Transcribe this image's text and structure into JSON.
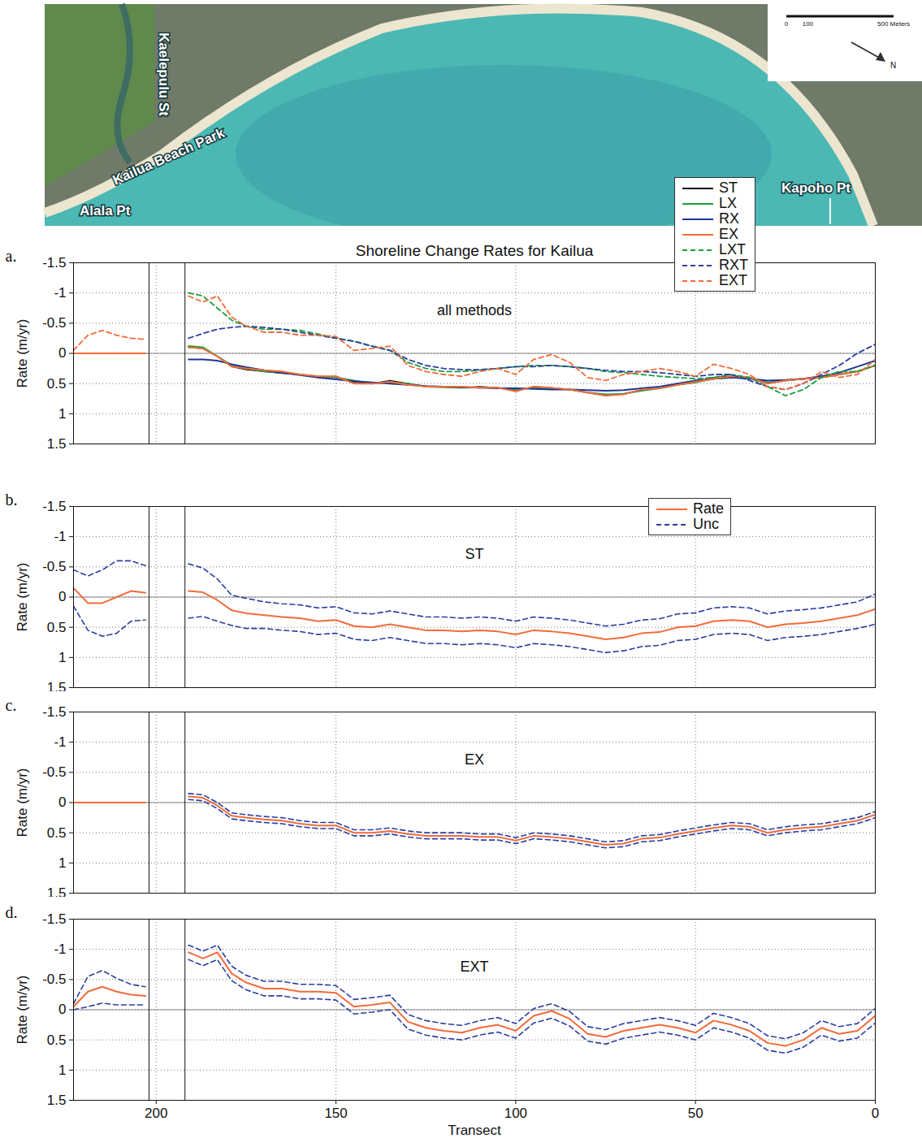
{
  "map": {
    "labels": {
      "street": "Kaelepulu St",
      "park": "Kailua Beach Park",
      "west_point": "Alala Pt",
      "east_point": "Kapoho Pt"
    },
    "scale_bar": {
      "ticks": [
        0,
        100,
        {
          "value": 500,
          "label": "500 Meters"
        }
      ]
    },
    "north": "N"
  },
  "chart_data": [
    {
      "type": "line",
      "panel_label": "a.",
      "title": "Shoreline Change Rates for Kailua",
      "annotation": "all methods",
      "x_label": null,
      "y_label": "Rate (m/yr)",
      "xlim": [
        223,
        0
      ],
      "xticks": [
        200,
        150,
        100,
        50,
        0
      ],
      "ylim": [
        1.5,
        -1.5
      ],
      "yticks": [
        -1.5,
        -1,
        -0.5,
        0,
        0.5,
        1,
        1.5
      ],
      "grid": true,
      "legend": "top-right",
      "tick_labels": "y",
      "gap_lines": [
        202,
        192
      ],
      "x": [
        223,
        219,
        215,
        211,
        207,
        203,
        197,
        191,
        187,
        183,
        179,
        175,
        170,
        165,
        160,
        155,
        150,
        145,
        140,
        135,
        130,
        125,
        120,
        115,
        110,
        105,
        100,
        95,
        90,
        85,
        80,
        75,
        70,
        65,
        60,
        55,
        50,
        45,
        40,
        35,
        30,
        25,
        20,
        15,
        10,
        5,
        0
      ],
      "series": [
        {
          "name": "ST",
          "color": "#111111",
          "line_style": "solid",
          "values": [
            null,
            null,
            null,
            null,
            null,
            null,
            null,
            -0.1,
            -0.08,
            0.05,
            0.22,
            0.27,
            0.3,
            0.33,
            0.35,
            0.4,
            0.38,
            0.48,
            0.5,
            0.45,
            0.5,
            0.55,
            0.55,
            0.57,
            0.55,
            0.57,
            0.62,
            0.55,
            0.57,
            0.6,
            0.65,
            0.7,
            0.67,
            0.6,
            0.58,
            0.5,
            0.48,
            0.4,
            0.38,
            0.4,
            0.5,
            0.45,
            0.43,
            0.4,
            0.35,
            0.3,
            0.2
          ]
        },
        {
          "name": "LX",
          "color": "#1a9e3c",
          "line_style": "solid",
          "values": [
            null,
            null,
            null,
            null,
            null,
            null,
            null,
            -0.12,
            -0.1,
            0.05,
            0.2,
            0.25,
            0.3,
            0.32,
            0.35,
            0.38,
            0.4,
            0.45,
            0.5,
            0.48,
            0.5,
            0.55,
            0.56,
            0.57,
            0.56,
            0.57,
            0.6,
            0.57,
            0.58,
            0.6,
            0.65,
            0.68,
            0.67,
            0.62,
            0.58,
            0.52,
            0.48,
            0.42,
            0.4,
            0.4,
            0.48,
            0.45,
            0.42,
            0.4,
            0.35,
            0.3,
            0.2
          ]
        },
        {
          "name": "RX",
          "color": "#1f3596",
          "line_style": "solid",
          "values": [
            null,
            null,
            null,
            null,
            null,
            null,
            null,
            0.1,
            0.1,
            0.12,
            0.18,
            0.23,
            0.28,
            0.32,
            0.36,
            0.4,
            0.43,
            0.46,
            0.48,
            0.5,
            0.52,
            0.54,
            0.55,
            0.56,
            0.57,
            0.58,
            0.58,
            0.59,
            0.6,
            0.6,
            0.61,
            0.62,
            0.61,
            0.58,
            0.55,
            0.5,
            0.45,
            0.42,
            0.4,
            0.42,
            0.45,
            0.44,
            0.42,
            0.38,
            0.32,
            0.22,
            0.12
          ]
        },
        {
          "name": "EX",
          "color": "#f26b3a",
          "line_style": "solid",
          "values": [
            0,
            0,
            0,
            0,
            0,
            0,
            null,
            -0.1,
            -0.08,
            0.05,
            0.22,
            0.25,
            0.28,
            0.3,
            0.35,
            0.38,
            0.38,
            0.5,
            0.5,
            0.47,
            0.52,
            0.55,
            0.55,
            0.55,
            0.57,
            0.57,
            0.63,
            0.55,
            0.57,
            0.6,
            0.65,
            0.7,
            0.68,
            0.6,
            0.58,
            0.52,
            0.47,
            0.42,
            0.38,
            0.4,
            0.5,
            0.45,
            0.42,
            0.4,
            0.35,
            0.3,
            0.2
          ]
        },
        {
          "name": "LXT",
          "color": "#1a9e3c",
          "line_style": "dashed",
          "values": [
            null,
            null,
            null,
            null,
            null,
            null,
            null,
            -1,
            -0.95,
            -0.75,
            -0.55,
            -0.45,
            -0.4,
            -0.4,
            -0.38,
            -0.32,
            -0.25,
            -0.2,
            -0.12,
            -0.05,
            0.15,
            0.25,
            0.3,
            0.3,
            0.28,
            0.25,
            0.22,
            0.2,
            0.2,
            0.22,
            0.25,
            0.3,
            0.32,
            0.35,
            0.38,
            0.4,
            0.42,
            0.4,
            0.35,
            0.4,
            0.55,
            0.7,
            0.6,
            0.4,
            0.3,
            0.3,
            0.2
          ]
        },
        {
          "name": "RXT",
          "color": "#2b3ea0",
          "line_style": "dashed",
          "values": [
            null,
            null,
            null,
            null,
            null,
            null,
            null,
            -0.25,
            -0.33,
            -0.4,
            -0.43,
            -0.45,
            -0.43,
            -0.4,
            -0.35,
            -0.3,
            -0.25,
            -0.2,
            -0.12,
            -0.05,
            0.1,
            0.2,
            0.25,
            0.27,
            0.27,
            0.25,
            0.22,
            0.22,
            0.2,
            0.22,
            0.25,
            0.28,
            0.3,
            0.3,
            0.32,
            0.35,
            0.38,
            0.35,
            0.35,
            0.45,
            0.55,
            0.6,
            0.5,
            0.35,
            0.2,
            0,
            -0.15
          ]
        },
        {
          "name": "EXT",
          "color": "#f26b3a",
          "line_style": "dashed",
          "values": [
            -0.05,
            -0.3,
            -0.38,
            -0.3,
            -0.25,
            -0.23,
            null,
            -0.95,
            -0.85,
            -0.95,
            -0.6,
            -0.45,
            -0.35,
            -0.35,
            -0.3,
            -0.3,
            -0.28,
            -0.05,
            -0.08,
            -0.12,
            0.2,
            0.3,
            0.35,
            0.38,
            0.3,
            0.25,
            0.35,
            0.1,
            0.02,
            0.15,
            0.4,
            0.45,
            0.35,
            0.3,
            0.25,
            0.3,
            0.38,
            0.18,
            0.25,
            0.35,
            0.55,
            0.6,
            0.5,
            0.3,
            0.4,
            0.35,
            0.1
          ]
        }
      ]
    },
    {
      "type": "line",
      "panel_label": "b.",
      "annotation": "ST",
      "x_label": null,
      "y_label": "Rate (m/yr)",
      "xlim": [
        223,
        0
      ],
      "xticks": [
        200,
        150,
        100,
        50,
        0
      ],
      "ylim": [
        1.5,
        -1.5
      ],
      "yticks": [
        -1.5,
        -1,
        -0.5,
        0,
        0.5,
        1,
        1.5
      ],
      "grid": true,
      "legend": "top-right",
      "tick_labels": "y",
      "gap_lines": [
        202,
        192
      ],
      "x": [
        223,
        219,
        215,
        211,
        207,
        203,
        197,
        191,
        187,
        183,
        179,
        175,
        170,
        165,
        160,
        155,
        150,
        145,
        140,
        135,
        130,
        125,
        120,
        115,
        110,
        105,
        100,
        95,
        90,
        85,
        80,
        75,
        70,
        65,
        60,
        55,
        50,
        45,
        40,
        35,
        30,
        25,
        20,
        15,
        10,
        5,
        0
      ],
      "series": [
        {
          "name": "Rate",
          "color": "#f26b3a",
          "line_style": "solid",
          "values": [
            -0.15,
            0.1,
            0.1,
            0,
            -0.1,
            -0.07,
            null,
            -0.1,
            -0.08,
            0.05,
            0.22,
            0.27,
            0.3,
            0.33,
            0.35,
            0.4,
            0.38,
            0.48,
            0.5,
            0.45,
            0.5,
            0.55,
            0.55,
            0.57,
            0.55,
            0.57,
            0.62,
            0.55,
            0.57,
            0.6,
            0.65,
            0.7,
            0.67,
            0.6,
            0.58,
            0.5,
            0.48,
            0.4,
            0.38,
            0.4,
            0.5,
            0.45,
            0.43,
            0.4,
            0.35,
            0.3,
            0.2
          ],
          "uncertainty": {
            "name": "Unc",
            "color": "#2b3ea0",
            "line_style": "dashed",
            "values": [
              0.3,
              0.45,
              0.55,
              0.6,
              0.5,
              0.45,
              null,
              0.45,
              0.4,
              0.35,
              0.25,
              0.25,
              0.22,
              0.22,
              0.22,
              0.22,
              0.22,
              0.22,
              0.22,
              0.22,
              0.22,
              0.22,
              0.22,
              0.22,
              0.22,
              0.22,
              0.22,
              0.22,
              0.22,
              0.22,
              0.22,
              0.22,
              0.22,
              0.22,
              0.22,
              0.22,
              0.22,
              0.22,
              0.22,
              0.22,
              0.22,
              0.22,
              0.22,
              0.22,
              0.22,
              0.22,
              0.25
            ]
          }
        }
      ]
    },
    {
      "type": "line",
      "panel_label": "c.",
      "annotation": "EX",
      "x_label": null,
      "y_label": "Rate (m/yr)",
      "xlim": [
        223,
        0
      ],
      "xticks": [
        200,
        150,
        100,
        50,
        0
      ],
      "ylim": [
        1.5,
        -1.5
      ],
      "yticks": [
        -1.5,
        -1,
        -0.5,
        0,
        0.5,
        1,
        1.5
      ],
      "grid": true,
      "tick_labels": "y",
      "gap_lines": [
        202,
        192
      ],
      "x": [
        223,
        219,
        215,
        211,
        207,
        203,
        197,
        191,
        187,
        183,
        179,
        175,
        170,
        165,
        160,
        155,
        150,
        145,
        140,
        135,
        130,
        125,
        120,
        115,
        110,
        105,
        100,
        95,
        90,
        85,
        80,
        75,
        70,
        65,
        60,
        55,
        50,
        45,
        40,
        35,
        30,
        25,
        20,
        15,
        10,
        5,
        0
      ],
      "series": [
        {
          "name": "Rate",
          "color": "#f26b3a",
          "line_style": "solid",
          "values": [
            0,
            0,
            0,
            0,
            0,
            0,
            null,
            -0.1,
            -0.08,
            0.05,
            0.22,
            0.25,
            0.28,
            0.3,
            0.35,
            0.38,
            0.38,
            0.5,
            0.5,
            0.47,
            0.52,
            0.55,
            0.55,
            0.55,
            0.57,
            0.57,
            0.63,
            0.55,
            0.57,
            0.6,
            0.65,
            0.7,
            0.68,
            0.6,
            0.58,
            0.52,
            0.47,
            0.42,
            0.38,
            0.4,
            0.5,
            0.45,
            0.42,
            0.4,
            0.35,
            0.3,
            0.2
          ],
          "uncertainty": {
            "name": "Unc",
            "color": "#2b3ea0",
            "line_style": "dashed",
            "values": [
              0,
              0,
              0,
              0,
              0,
              0,
              null,
              0.05,
              0.05,
              0.05,
              0.05,
              0.05,
              0.05,
              0.05,
              0.05,
              0.05,
              0.05,
              0.05,
              0.05,
              0.05,
              0.05,
              0.05,
              0.05,
              0.05,
              0.05,
              0.05,
              0.05,
              0.05,
              0.05,
              0.05,
              0.05,
              0.05,
              0.05,
              0.05,
              0.05,
              0.05,
              0.05,
              0.05,
              0.05,
              0.05,
              0.05,
              0.05,
              0.05,
              0.05,
              0.05,
              0.05,
              0.05
            ]
          }
        }
      ]
    },
    {
      "type": "line",
      "panel_label": "d.",
      "annotation": "EXT",
      "x_label": "Transect",
      "y_label": "Rate (m/yr)",
      "xlim": [
        223,
        0
      ],
      "xticks": [
        200,
        150,
        100,
        50,
        0
      ],
      "ylim": [
        1.5,
        -1.5
      ],
      "yticks": [
        -1.5,
        -1,
        -0.5,
        0,
        0.5,
        1,
        1.5
      ],
      "grid": true,
      "gap_lines": [
        202,
        192
      ],
      "x": [
        223,
        219,
        215,
        211,
        207,
        203,
        197,
        191,
        187,
        183,
        179,
        175,
        170,
        165,
        160,
        155,
        150,
        145,
        140,
        135,
        130,
        125,
        120,
        115,
        110,
        105,
        100,
        95,
        90,
        85,
        80,
        75,
        70,
        65,
        60,
        55,
        50,
        45,
        40,
        35,
        30,
        25,
        20,
        15,
        10,
        5,
        0
      ],
      "series": [
        {
          "name": "Rate",
          "color": "#f26b3a",
          "line_style": "solid",
          "values": [
            -0.05,
            -0.3,
            -0.38,
            -0.3,
            -0.25,
            -0.23,
            null,
            -0.95,
            -0.85,
            -0.95,
            -0.6,
            -0.45,
            -0.35,
            -0.35,
            -0.3,
            -0.3,
            -0.28,
            -0.05,
            -0.08,
            -0.12,
            0.2,
            0.3,
            0.35,
            0.38,
            0.3,
            0.25,
            0.35,
            0.1,
            0.02,
            0.15,
            0.4,
            0.45,
            0.35,
            0.3,
            0.25,
            0.3,
            0.38,
            0.18,
            0.25,
            0.35,
            0.55,
            0.6,
            0.5,
            0.3,
            0.4,
            0.35,
            0.1
          ],
          "uncertainty": {
            "name": "Unc",
            "color": "#2b3ea0",
            "line_style": "dashed",
            "values": [
              0.05,
              0.25,
              0.27,
              0.22,
              0.17,
              0.15,
              null,
              0.12,
              0.12,
              0.12,
              0.12,
              0.12,
              0.12,
              0.12,
              0.12,
              0.12,
              0.12,
              0.12,
              0.12,
              0.12,
              0.12,
              0.12,
              0.12,
              0.12,
              0.12,
              0.12,
              0.12,
              0.12,
              0.12,
              0.12,
              0.12,
              0.12,
              0.12,
              0.12,
              0.12,
              0.12,
              0.12,
              0.12,
              0.12,
              0.12,
              0.12,
              0.12,
              0.12,
              0.12,
              0.12,
              0.12,
              0.12
            ]
          }
        }
      ]
    }
  ]
}
